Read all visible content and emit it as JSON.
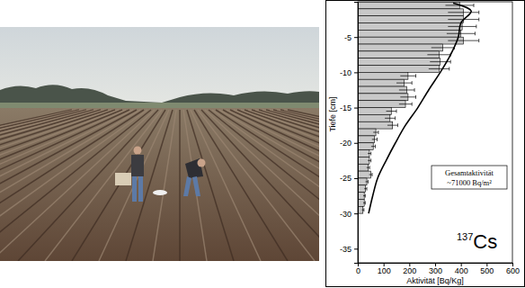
{
  "chart_data": {
    "type": "bar",
    "orientation": "horizontal",
    "x_label": "Aktivität [Bq/Kg]",
    "y_label": "Tiefe [cm]",
    "bins": [
      0,
      -1,
      -2,
      -3,
      -4,
      -5,
      -6,
      -7,
      -8,
      -9,
      -10,
      -11,
      -12,
      -13,
      -14,
      -15,
      -16,
      -17,
      -18,
      -19,
      -20,
      -21,
      -22,
      -23,
      -24,
      -25,
      -26,
      -27,
      -28,
      -29,
      -30
    ],
    "values": [
      395,
      410,
      410,
      405,
      400,
      410,
      330,
      315,
      320,
      315,
      195,
      180,
      190,
      195,
      185,
      130,
      125,
      135,
      70,
      65,
      60,
      45,
      45,
      40,
      50,
      35,
      30,
      25,
      25,
      20
    ],
    "errors": [
      55,
      60,
      60,
      55,
      55,
      60,
      45,
      45,
      40,
      40,
      30,
      30,
      30,
      30,
      25,
      20,
      20,
      20,
      10,
      10,
      8,
      6,
      6,
      6,
      6,
      5,
      5,
      4,
      4,
      4
    ],
    "color": "#c8c8c8",
    "xlim": [
      0,
      600
    ],
    "xticks": [
      0,
      100,
      200,
      300,
      400,
      500,
      600
    ],
    "ylim": [
      -37,
      0
    ],
    "yticks": [
      -35,
      -30,
      -25,
      -20,
      -15,
      -10,
      -5
    ],
    "fit_curve": {
      "type": "line",
      "color": "#000000",
      "x": [
        370,
        440,
        400,
        390,
        360,
        320,
        275,
        233,
        185,
        146,
        110,
        77,
        58,
        42
      ],
      "y": [
        -0.2,
        -1.3,
        -3,
        -5,
        -7.5,
        -10,
        -12.5,
        -15,
        -17.5,
        -20,
        -22.5,
        -25,
        -27.5,
        -30
      ]
    },
    "annotations": [
      "Gesamtaktivität",
      "~71000 Bq/m²"
    ],
    "isotope": {
      "mass_number": "137",
      "symbol": "Cs"
    }
  }
}
